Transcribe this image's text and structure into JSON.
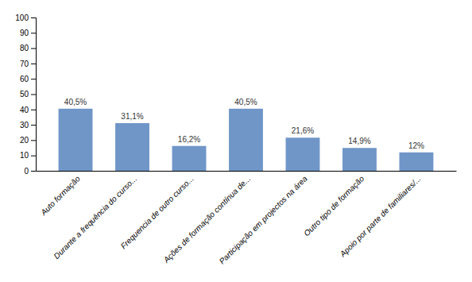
{
  "chart_data": {
    "type": "bar",
    "categories": [
      "Auto formação",
      "Durante a frequência do curso...",
      "Frequencia de outro curso...",
      "Ações de formação contínua de...",
      "Participação em projectos na área",
      "Outro tipo de formação",
      "Apoio por parte de familiares/..."
    ],
    "values": [
      40.5,
      31.1,
      16.2,
      40.5,
      21.6,
      14.9,
      12.0
    ],
    "value_labels": [
      "40,5%",
      "31,1%",
      "16,2%",
      "40,5%",
      "21,6%",
      "14,9%",
      "12%"
    ],
    "data_labels": true,
    "color": "#7096C8",
    "ylim": [
      0,
      100
    ],
    "yticks": [
      0,
      10,
      20,
      30,
      40,
      50,
      60,
      70,
      80,
      90,
      100
    ],
    "grid": false
  }
}
